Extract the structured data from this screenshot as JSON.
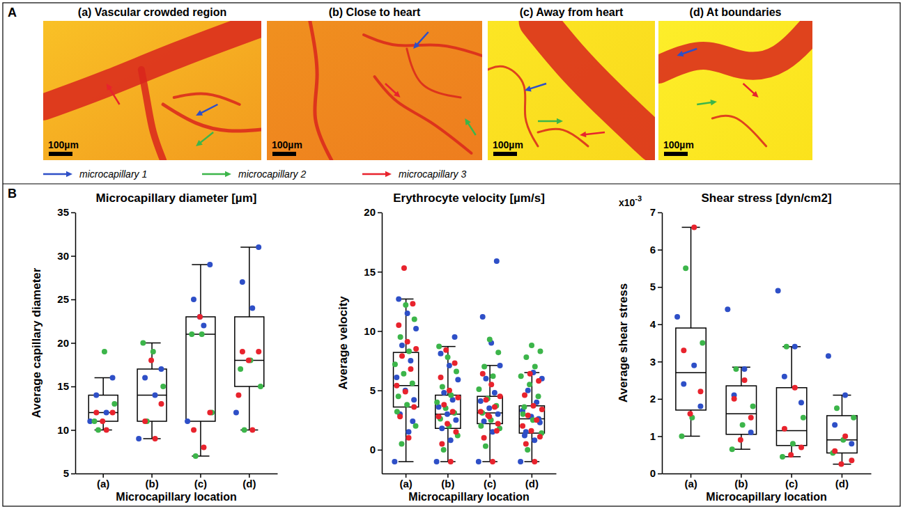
{
  "panel_a": {
    "label": "A",
    "images": [
      {
        "title": "(a) Vascular crowded region",
        "scale_bar": "100µm"
      },
      {
        "title": "(b) Close to heart",
        "scale_bar": "100µm"
      },
      {
        "title": "(c) Away from heart",
        "scale_bar": "100µm"
      },
      {
        "title": "(d) At boundaries",
        "scale_bar": "100µm"
      }
    ],
    "legend": [
      {
        "name": "microcapillary 1",
        "color": "#2e4fc7"
      },
      {
        "name": "microcapillary 2",
        "color": "#3cb54a"
      },
      {
        "name": "microcapillary 3",
        "color": "#e8232d"
      }
    ]
  },
  "panel_b": {
    "label": "B"
  },
  "chart_data": [
    {
      "type": "box",
      "title": "Microcapillary diameter [µm]",
      "x_label": "Microcapillary location",
      "y_label": "Average capillary diameter",
      "categories": [
        "(a)",
        "(b)",
        "(c)",
        "(d)"
      ],
      "ylim": [
        5,
        35
      ],
      "yticks": [
        5,
        10,
        15,
        20,
        25,
        30,
        35
      ],
      "grid": false,
      "boxes": [
        {
          "whisker_low": 10,
          "q1": 11,
          "median": 12,
          "q3": 14,
          "whisker_high": 16
        },
        {
          "whisker_low": 9,
          "q1": 11,
          "median": 14,
          "q3": 17,
          "whisker_high": 20
        },
        {
          "whisker_low": 7,
          "q1": 11,
          "median": 21,
          "q3": 23,
          "whisker_high": 29
        },
        {
          "whisker_low": 10,
          "q1": 15,
          "median": 18,
          "q3": 23,
          "whisker_high": 31
        }
      ],
      "series": [
        {
          "name": "microcapillary 1",
          "color": "#2e4fc7",
          "values": [
            [
              11,
              12,
              14,
              16
            ],
            [
              9,
              14,
              16,
              17
            ],
            [
              11,
              22,
              25,
              29,
              23
            ],
            [
              12,
              24,
              27,
              31
            ]
          ]
        },
        {
          "name": "microcapillary 2",
          "color": "#3cb54a",
          "values": [
            [
              10,
              13,
              19,
              11
            ],
            [
              11,
              15,
              19,
              20
            ],
            [
              7,
              12,
              21,
              21
            ],
            [
              10,
              15,
              18,
              17
            ]
          ]
        },
        {
          "name": "microcapillary 3",
          "color": "#e8232d",
          "values": [
            [
              10,
              12,
              12,
              11
            ],
            [
              9,
              11,
              13,
              18
            ],
            [
              8,
              10,
              12,
              23
            ],
            [
              10,
              19,
              19,
              18,
              14
            ]
          ]
        }
      ]
    },
    {
      "type": "box",
      "title": "Erythrocyte velocity [µm/s]",
      "x_label": "Microcapillary location",
      "y_label": "Average velocity",
      "categories": [
        "(a)",
        "(b)",
        "(c)",
        "(d)"
      ],
      "ylim": [
        -2,
        20
      ],
      "yticks": [
        0,
        5,
        10,
        15,
        20
      ],
      "grid": false,
      "boxes": [
        {
          "whisker_low": -1,
          "q1": 3.6,
          "median": 5.4,
          "q3": 8.2,
          "whisker_high": 12.7
        },
        {
          "whisker_low": -1,
          "q1": 1.8,
          "median": 3.0,
          "q3": 4.6,
          "whisker_high": 8.7
        },
        {
          "whisker_low": -1,
          "q1": 2.2,
          "median": 3.1,
          "q3": 4.5,
          "whisker_high": 7.1
        },
        {
          "whisker_low": -1,
          "q1": 1.4,
          "median": 2.6,
          "q3": 3.7,
          "whisker_high": 6.5
        }
      ],
      "series": [
        {
          "name": "microcapillary 1",
          "color": "#2e4fc7",
          "values": [
            [
              -1,
              1.5,
              3,
              4.2,
              5,
              6.1,
              7.5,
              8.8,
              10.2,
              11.5,
              12.7,
              2.4
            ],
            [
              -1,
              0.8,
              1.8,
              2.5,
              3.0,
              3.6,
              4.2,
              4.8,
              5.9,
              7.1,
              8.1,
              9.5
            ],
            [
              -1,
              1.5,
              2.4,
              3.0,
              3.5,
              4.1,
              4.8,
              6.0,
              7.1,
              9.0,
              11.2,
              15.9
            ],
            [
              -1,
              0.8,
              1.5,
              2.3,
              2.8,
              3.3,
              4.0,
              5.0,
              6.0,
              6.5,
              1.2,
              2.6
            ]
          ]
        },
        {
          "name": "microcapillary 2",
          "color": "#3cb54a",
          "values": [
            [
              0.5,
              2,
              3.8,
              4.5,
              5.6,
              6.4,
              7.2,
              8.3,
              9.5,
              11,
              12.2,
              3.2
            ],
            [
              0,
              1.2,
              2.0,
              2.6,
              3.1,
              3.5,
              4.0,
              4.6,
              5.3,
              6.6,
              7.8,
              8.7
            ],
            [
              0.3,
              1.8,
              2.5,
              3.1,
              3.7,
              4.3,
              5.1,
              6.2,
              7.0,
              8.2,
              9.3,
              2.0
            ],
            [
              0,
              1.4,
              2.5,
              3.6,
              4.5,
              5.5,
              6.2,
              7.0,
              7.8,
              8.3,
              8.8,
              3.0
            ]
          ]
        },
        {
          "name": "microcapillary 3",
          "color": "#e8232d",
          "values": [
            [
              1,
              2.8,
              3.6,
              4.9,
              5.4,
              6.8,
              7.9,
              8.5,
              9.1,
              10.5,
              12.3,
              15.3
            ],
            [
              -1,
              0.5,
              1.5,
              2.2,
              2.8,
              3.2,
              3.8,
              4.4,
              5.0,
              6.1,
              7.3,
              8.4
            ],
            [
              -1,
              1.0,
              2.2,
              2.8,
              3.2,
              3.6,
              4.2,
              4.5,
              5.5,
              6.4,
              1.6,
              2.9
            ],
            [
              -1,
              0.5,
              1.1,
              1.6,
              2.0,
              2.5,
              2.9,
              3.4,
              3.7,
              4.6,
              5.8,
              6.4
            ]
          ]
        }
      ]
    },
    {
      "type": "box",
      "title": "Shear stress [dyn/cm2]",
      "x_label": "Microcapillary location",
      "y_label": "Average shear stress",
      "y_multiplier": {
        "text": "x10",
        "superscript": "-3"
      },
      "categories": [
        "(a)",
        "(b)",
        "(c)",
        "(d)"
      ],
      "ylim": [
        0,
        7
      ],
      "yticks": [
        0,
        1,
        2,
        3,
        4,
        5,
        6,
        7
      ],
      "grid": false,
      "boxes": [
        {
          "whisker_low": 1.0,
          "q1": 1.7,
          "median": 2.7,
          "q3": 3.9,
          "whisker_high": 6.6
        },
        {
          "whisker_low": 0.65,
          "q1": 1.05,
          "median": 1.6,
          "q3": 2.35,
          "whisker_high": 2.85
        },
        {
          "whisker_low": 0.45,
          "q1": 0.75,
          "median": 1.15,
          "q3": 2.3,
          "whisker_high": 3.4
        },
        {
          "whisker_low": 0.25,
          "q1": 0.55,
          "median": 0.9,
          "q3": 1.55,
          "whisker_high": 2.1
        }
      ],
      "series": [
        {
          "name": "microcapillary 1",
          "color": "#2e4fc7",
          "values": [
            [
              4.2,
              2.9,
              2.4,
              1.8
            ],
            [
              4.4,
              2.8,
              2.1,
              1.1
            ],
            [
              4.9,
              3.4,
              2.6,
              1.9
            ],
            [
              3.15,
              2.1,
              1.3,
              0.8
            ]
          ]
        },
        {
          "name": "microcapillary 2",
          "color": "#3cb54a",
          "values": [
            [
              5.5,
              3.5,
              1.5,
              1.0
            ],
            [
              2.8,
              1.8,
              1.3,
              0.65
            ],
            [
              3.4,
              1.5,
              0.8,
              0.45
            ],
            [
              1.75,
              1.5,
              0.9,
              0.55
            ]
          ]
        },
        {
          "name": "microcapillary 3",
          "color": "#e8232d",
          "values": [
            [
              6.6,
              3.3,
              2.2,
              1.6
            ],
            [
              2.5,
              2.0,
              1.5,
              0.9
            ],
            [
              2.3,
              1.2,
              0.7,
              0.5
            ],
            [
              1.0,
              0.6,
              0.35,
              0.25
            ]
          ]
        }
      ]
    }
  ]
}
